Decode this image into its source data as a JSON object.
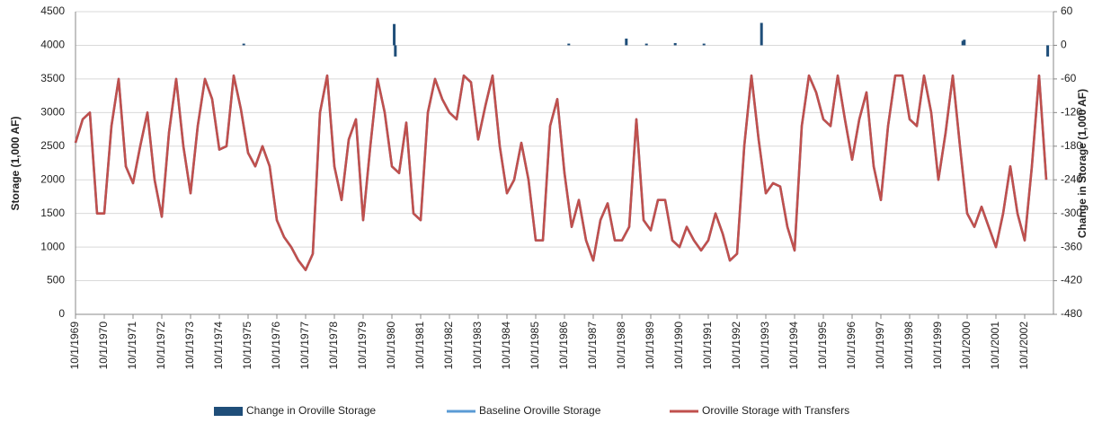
{
  "chart_data": {
    "type": "line",
    "y_label": "Storage (1,000 AF)",
    "y2_label": "Change in Storage (1,000 AF)",
    "xlim": [
      1969.75,
      2003.75
    ],
    "xticks": [
      {
        "value": 1969.75,
        "label": "10/1/1969"
      },
      {
        "value": 1970.75,
        "label": "10/1/1970"
      },
      {
        "value": 1971.75,
        "label": "10/1/1971"
      },
      {
        "value": 1972.75,
        "label": "10/1/1972"
      },
      {
        "value": 1973.75,
        "label": "10/1/1973"
      },
      {
        "value": 1974.75,
        "label": "10/1/1974"
      },
      {
        "value": 1975.75,
        "label": "10/1/1975"
      },
      {
        "value": 1976.75,
        "label": "10/1/1976"
      },
      {
        "value": 1977.75,
        "label": "10/1/1977"
      },
      {
        "value": 1978.75,
        "label": "10/1/1978"
      },
      {
        "value": 1979.75,
        "label": "10/1/1979"
      },
      {
        "value": 1980.75,
        "label": "10/1/1980"
      },
      {
        "value": 1981.75,
        "label": "10/1/1981"
      },
      {
        "value": 1982.75,
        "label": "10/1/1982"
      },
      {
        "value": 1983.75,
        "label": "10/1/1983"
      },
      {
        "value": 1984.75,
        "label": "10/1/1984"
      },
      {
        "value": 1985.75,
        "label": "10/1/1985"
      },
      {
        "value": 1986.75,
        "label": "10/1/1986"
      },
      {
        "value": 1987.75,
        "label": "10/1/1987"
      },
      {
        "value": 1988.75,
        "label": "10/1/1988"
      },
      {
        "value": 1989.75,
        "label": "10/1/1989"
      },
      {
        "value": 1990.75,
        "label": "10/1/1990"
      },
      {
        "value": 1991.75,
        "label": "10/1/1991"
      },
      {
        "value": 1992.75,
        "label": "10/1/1992"
      },
      {
        "value": 1993.75,
        "label": "10/1/1993"
      },
      {
        "value": 1994.75,
        "label": "10/1/1994"
      },
      {
        "value": 1995.75,
        "label": "10/1/1995"
      },
      {
        "value": 1996.75,
        "label": "10/1/1996"
      },
      {
        "value": 1997.75,
        "label": "10/1/1997"
      },
      {
        "value": 1998.75,
        "label": "10/1/1998"
      },
      {
        "value": 1999.75,
        "label": "10/1/1999"
      },
      {
        "value": 2000.75,
        "label": "10/1/2000"
      },
      {
        "value": 2001.75,
        "label": "10/1/2001"
      },
      {
        "value": 2002.75,
        "label": "10/1/2002"
      }
    ],
    "ylim": [
      0,
      4500
    ],
    "yticks": [
      0,
      500,
      1000,
      1500,
      2000,
      2500,
      3000,
      3500,
      4000,
      4500
    ],
    "y2lim": [
      -480,
      60
    ],
    "y2ticks": [
      -480,
      -420,
      -360,
      -300,
      -240,
      -180,
      -120,
      -60,
      0,
      60
    ],
    "grid": true,
    "legend": "bottom",
    "series": [
      {
        "name": "Change in Oroville Storage",
        "type": "bar",
        "axis": "y2",
        "color": "#1f4e79",
        "x": [
          1975.6,
          1980.83,
          1980.87,
          1986.9,
          1988.9,
          1989.6,
          1990.6,
          1991.6,
          1993.6,
          2000.6,
          2000.65,
          2003.55
        ],
        "values": [
          3,
          38,
          -20,
          3,
          12,
          3,
          4,
          3,
          40,
          8,
          10,
          -20
        ]
      },
      {
        "name": "Baseline Oroville Storage",
        "color": "#5b9bd5",
        "x": [
          1969.75,
          1970,
          1970.25,
          1970.5,
          1970.75,
          1971,
          1971.25,
          1971.5,
          1971.75,
          1972,
          1972.25,
          1972.5,
          1972.75,
          1973,
          1973.25,
          1973.5,
          1973.75,
          1974,
          1974.25,
          1974.5,
          1974.75,
          1975,
          1975.25,
          1975.5,
          1975.75,
          1976,
          1976.25,
          1976.5,
          1976.75,
          1977,
          1977.25,
          1977.5,
          1977.75,
          1978,
          1978.25,
          1978.5,
          1978.75,
          1979,
          1979.25,
          1979.5,
          1979.75,
          1980,
          1980.25,
          1980.5,
          1980.75,
          1981,
          1981.25,
          1981.5,
          1981.75,
          1982,
          1982.25,
          1982.5,
          1982.75,
          1983,
          1983.25,
          1983.5,
          1983.75,
          1984,
          1984.25,
          1984.5,
          1984.75,
          1985,
          1985.25,
          1985.5,
          1985.75,
          1986,
          1986.25,
          1986.5,
          1986.75,
          1987,
          1987.25,
          1987.5,
          1987.75,
          1988,
          1988.25,
          1988.5,
          1988.75,
          1989,
          1989.25,
          1989.5,
          1989.75,
          1990,
          1990.25,
          1990.5,
          1990.75,
          1991,
          1991.25,
          1991.5,
          1991.75,
          1992,
          1992.25,
          1992.5,
          1992.75,
          1993,
          1993.25,
          1993.5,
          1993.75,
          1994,
          1994.25,
          1994.5,
          1994.75,
          1995,
          1995.25,
          1995.5,
          1995.75,
          1996,
          1996.25,
          1996.5,
          1996.75,
          1997,
          1997.25,
          1997.5,
          1997.75,
          1998,
          1998.25,
          1998.5,
          1998.75,
          1999,
          1999.25,
          1999.5,
          1999.75,
          2000,
          2000.25,
          2000.5,
          2000.75,
          2001,
          2001.25,
          2001.5,
          2001.75,
          2002,
          2002.25,
          2002.5,
          2002.75,
          2003,
          2003.25,
          2003.5
        ],
        "values": [
          2550,
          2900,
          3000,
          1500,
          1500,
          2800,
          3500,
          2200,
          1950,
          2500,
          3000,
          2000,
          1450,
          2700,
          3500,
          2500,
          1800,
          2800,
          3500,
          3200,
          2450,
          2500,
          3550,
          3050,
          2400,
          2200,
          2500,
          2200,
          1400,
          1150,
          1000,
          800,
          660,
          900,
          3000,
          3550,
          2200,
          1700,
          2600,
          2900,
          1400,
          2500,
          3500,
          3000,
          2200,
          2100,
          2850,
          1500,
          1400,
          3000,
          3500,
          3200,
          3000,
          2900,
          3550,
          3450,
          2600,
          3100,
          3550,
          2500,
          1800,
          2000,
          2550,
          2000,
          1100,
          1100,
          2800,
          3200,
          2100,
          1300,
          1700,
          1100,
          800,
          1400,
          1650,
          1100,
          1100,
          1300,
          2900,
          1400,
          1250,
          1700,
          1700,
          1100,
          1000,
          1300,
          1100,
          950,
          1100,
          1500,
          1200,
          800,
          900,
          2500,
          3550,
          2600,
          1800,
          1950,
          1900,
          1300,
          950,
          2800,
          3550,
          3300,
          2900,
          2800,
          3550,
          2900,
          2300,
          2900,
          3300,
          2200,
          1700,
          2800,
          3550,
          3550,
          2900,
          2800,
          3550,
          3000,
          2000,
          2700,
          3550,
          2500,
          1500,
          1300,
          1600,
          1300,
          1000,
          1500,
          2200,
          1500,
          1100,
          2200,
          3550,
          2000
        ]
      },
      {
        "name": "Oroville Storage with Transfers",
        "color": "#c0504d",
        "x": [
          1969.75,
          1970,
          1970.25,
          1970.5,
          1970.75,
          1971,
          1971.25,
          1971.5,
          1971.75,
          1972,
          1972.25,
          1972.5,
          1972.75,
          1973,
          1973.25,
          1973.5,
          1973.75,
          1974,
          1974.25,
          1974.5,
          1974.75,
          1975,
          1975.25,
          1975.5,
          1975.75,
          1976,
          1976.25,
          1976.5,
          1976.75,
          1977,
          1977.25,
          1977.5,
          1977.75,
          1978,
          1978.25,
          1978.5,
          1978.75,
          1979,
          1979.25,
          1979.5,
          1979.75,
          1980,
          1980.25,
          1980.5,
          1980.75,
          1981,
          1981.25,
          1981.5,
          1981.75,
          1982,
          1982.25,
          1982.5,
          1982.75,
          1983,
          1983.25,
          1983.5,
          1983.75,
          1984,
          1984.25,
          1984.5,
          1984.75,
          1985,
          1985.25,
          1985.5,
          1985.75,
          1986,
          1986.25,
          1986.5,
          1986.75,
          1987,
          1987.25,
          1987.5,
          1987.75,
          1988,
          1988.25,
          1988.5,
          1988.75,
          1989,
          1989.25,
          1989.5,
          1989.75,
          1990,
          1990.25,
          1990.5,
          1990.75,
          1991,
          1991.25,
          1991.5,
          1991.75,
          1992,
          1992.25,
          1992.5,
          1992.75,
          1993,
          1993.25,
          1993.5,
          1993.75,
          1994,
          1994.25,
          1994.5,
          1994.75,
          1995,
          1995.25,
          1995.5,
          1995.75,
          1996,
          1996.25,
          1996.5,
          1996.75,
          1997,
          1997.25,
          1997.5,
          1997.75,
          1998,
          1998.25,
          1998.5,
          1998.75,
          1999,
          1999.25,
          1999.5,
          1999.75,
          2000,
          2000.25,
          2000.5,
          2000.75,
          2001,
          2001.25,
          2001.5,
          2001.75,
          2002,
          2002.25,
          2002.5,
          2002.75,
          2003,
          2003.25,
          2003.5
        ],
        "values": [
          2550,
          2900,
          3000,
          1500,
          1500,
          2800,
          3500,
          2200,
          1950,
          2500,
          3000,
          2000,
          1450,
          2700,
          3500,
          2500,
          1800,
          2800,
          3500,
          3200,
          2450,
          2500,
          3550,
          3050,
          2400,
          2200,
          2500,
          2200,
          1400,
          1150,
          1000,
          800,
          660,
          900,
          3000,
          3550,
          2200,
          1700,
          2600,
          2900,
          1400,
          2500,
          3500,
          3000,
          2200,
          2100,
          2850,
          1500,
          1400,
          3000,
          3500,
          3200,
          3000,
          2900,
          3550,
          3450,
          2600,
          3100,
          3550,
          2500,
          1800,
          2000,
          2550,
          2000,
          1100,
          1100,
          2800,
          3200,
          2100,
          1300,
          1700,
          1100,
          800,
          1400,
          1650,
          1100,
          1100,
          1300,
          2900,
          1400,
          1250,
          1700,
          1700,
          1100,
          1000,
          1300,
          1100,
          950,
          1100,
          1500,
          1200,
          800,
          900,
          2500,
          3550,
          2600,
          1800,
          1950,
          1900,
          1300,
          950,
          2800,
          3550,
          3300,
          2900,
          2800,
          3550,
          2900,
          2300,
          2900,
          3300,
          2200,
          1700,
          2800,
          3550,
          3550,
          2900,
          2800,
          3550,
          3000,
          2000,
          2700,
          3550,
          2500,
          1500,
          1300,
          1600,
          1300,
          1000,
          1500,
          2200,
          1500,
          1100,
          2200,
          3550,
          2000
        ]
      }
    ]
  }
}
